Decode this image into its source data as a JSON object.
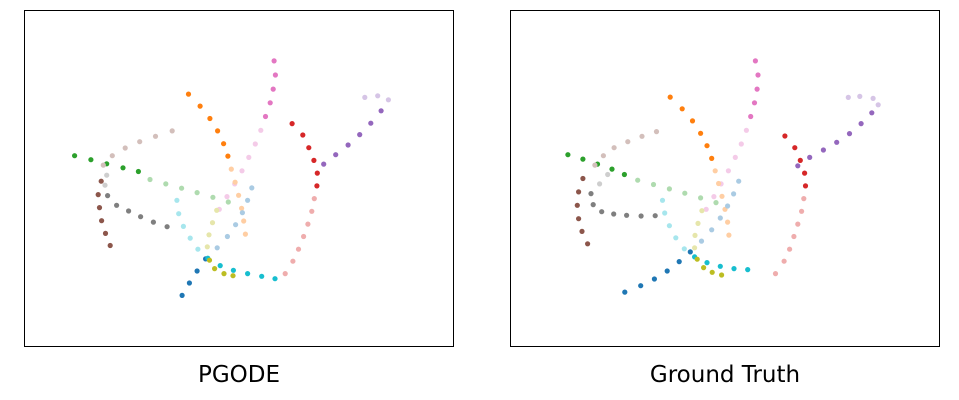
{
  "chart_data": [
    {
      "type": "scatter",
      "title": "PGODE",
      "xlim": [
        0,
        100
      ],
      "ylim": [
        0,
        100
      ],
      "grid": false,
      "series": [
        {
          "color": "#e377c2",
          "light": false,
          "points": [
            [
              58.2,
              85.1
            ],
            [
              58.5,
              80.9
            ],
            [
              58.0,
              76.7
            ],
            [
              57.3,
              72.6
            ],
            [
              56.2,
              68.5
            ]
          ]
        },
        {
          "color": "#e377c2",
          "light": true,
          "points": [
            [
              55.1,
              64.4
            ],
            [
              53.8,
              60.3
            ],
            [
              52.3,
              56.3
            ],
            [
              50.7,
              52.3
            ],
            [
              49.0,
              48.4
            ],
            [
              47.2,
              44.6
            ],
            [
              45.4,
              40.8
            ]
          ]
        },
        {
          "color": "#ff7f0e",
          "light": false,
          "points": [
            [
              38.2,
              75.2
            ],
            [
              40.9,
              71.6
            ],
            [
              43.2,
              67.9
            ],
            [
              45.0,
              64.2
            ],
            [
              46.4,
              60.4
            ],
            [
              47.4,
              56.7
            ]
          ]
        },
        {
          "color": "#ff7f0e",
          "light": true,
          "points": [
            [
              48.2,
              52.8
            ],
            [
              49.1,
              48.9
            ],
            [
              49.9,
              45.0
            ],
            [
              50.6,
              41.1
            ],
            [
              51.1,
              37.3
            ],
            [
              51.5,
              33.4
            ]
          ]
        },
        {
          "color": "#d62728",
          "light": false,
          "points": [
            [
              62.4,
              66.4
            ],
            [
              64.9,
              63.0
            ],
            [
              66.3,
              59.2
            ],
            [
              67.5,
              55.4
            ],
            [
              68.3,
              51.6
            ],
            [
              68.2,
              47.8
            ]
          ]
        },
        {
          "color": "#d62728",
          "light": true,
          "points": [
            [
              67.6,
              44.0
            ],
            [
              67.0,
              40.2
            ],
            [
              66.1,
              36.4
            ],
            [
              65.1,
              32.7
            ],
            [
              63.9,
              28.9
            ],
            [
              62.6,
              25.3
            ],
            [
              60.8,
              21.6
            ]
          ]
        },
        {
          "color": "#9467bd",
          "light": true,
          "points": [
            [
              79.4,
              74.2
            ],
            [
              82.4,
              74.7
            ],
            [
              84.9,
              73.5
            ]
          ]
        },
        {
          "color": "#9467bd",
          "light": false,
          "points": [
            [
              83.2,
              70.2
            ],
            [
              80.8,
              66.5
            ],
            [
              78.2,
              63.1
            ],
            [
              75.5,
              60.0
            ],
            [
              72.6,
              57.1
            ],
            [
              69.8,
              54.3
            ]
          ]
        },
        {
          "color": "#2ca02c",
          "light": false,
          "points": [
            [
              11.6,
              56.8
            ],
            [
              15.4,
              55.6
            ],
            [
              19.1,
              54.4
            ],
            [
              22.9,
              53.2
            ],
            [
              26.5,
              52.1
            ]
          ]
        },
        {
          "color": "#2ca02c",
          "light": true,
          "points": [
            [
              29.2,
              49.7
            ],
            [
              32.9,
              48.4
            ],
            [
              36.6,
              47.1
            ],
            [
              40.2,
              45.8
            ],
            [
              43.9,
              44.4
            ],
            [
              47.5,
              43.0
            ]
          ]
        },
        {
          "color": "#8c564b",
          "light": true,
          "points": [
            [
              34.4,
              64.2
            ],
            [
              30.5,
              62.6
            ],
            [
              26.8,
              61.0
            ],
            [
              23.4,
              59.1
            ],
            [
              20.4,
              56.8
            ],
            [
              18.3,
              54.0
            ]
          ]
        },
        {
          "color": "#8c564b",
          "light": false,
          "points": [
            [
              17.8,
              49.2
            ],
            [
              17.1,
              45.2
            ],
            [
              17.4,
              41.3
            ],
            [
              17.9,
              37.4
            ],
            [
              18.8,
              33.6
            ],
            [
              19.9,
              30.0
            ]
          ]
        },
        {
          "color": "#7f7f7f",
          "light": true,
          "points": [
            [
              19.1,
              51.0
            ],
            [
              18.7,
              48.0
            ]
          ]
        },
        {
          "color": "#7f7f7f",
          "light": false,
          "points": [
            [
              19.3,
              44.9
            ],
            [
              21.4,
              42.0
            ],
            [
              24.2,
              40.3
            ],
            [
              27.0,
              38.6
            ],
            [
              30.0,
              37.0
            ],
            [
              33.2,
              35.6
            ]
          ]
        },
        {
          "color": "#1f77b4",
          "light": true,
          "points": [
            [
              53.0,
              47.2
            ],
            [
              52.0,
              43.5
            ],
            [
              50.8,
              39.8
            ],
            [
              49.2,
              36.2
            ],
            [
              47.3,
              32.7
            ],
            [
              44.9,
              29.3
            ]
          ]
        },
        {
          "color": "#1f77b4",
          "light": false,
          "points": [
            [
              42.2,
              26.0
            ],
            [
              40.2,
              22.4
            ],
            [
              38.4,
              18.8
            ],
            [
              36.7,
              15.1
            ]
          ]
        },
        {
          "color": "#17becf",
          "light": true,
          "points": [
            [
              35.5,
              43.5
            ],
            [
              35.9,
              39.5
            ],
            [
              37.0,
              35.7
            ],
            [
              38.6,
              32.2
            ],
            [
              40.4,
              28.9
            ]
          ]
        },
        {
          "color": "#17becf",
          "light": false,
          "points": [
            [
              42.7,
              26.2
            ],
            [
              45.6,
              24.0
            ],
            [
              48.7,
              22.6
            ],
            [
              52.0,
              21.6
            ],
            [
              55.3,
              20.8
            ],
            [
              58.4,
              20.1
            ]
          ]
        },
        {
          "color": "#bcbd22",
          "light": true,
          "points": [
            [
              44.8,
              40.5
            ],
            [
              43.8,
              36.8
            ],
            [
              43.0,
              33.2
            ],
            [
              42.6,
              29.6
            ]
          ]
        },
        {
          "color": "#bcbd22",
          "light": false,
          "points": [
            [
              43.1,
              25.6
            ],
            [
              44.3,
              23.1
            ],
            [
              46.5,
              21.6
            ],
            [
              48.6,
              21.0
            ]
          ]
        }
      ]
    },
    {
      "type": "scatter",
      "title": "Ground Truth",
      "xlim": [
        0,
        100
      ],
      "ylim": [
        0,
        100
      ],
      "grid": false,
      "series": [
        {
          "color": "#e377c2",
          "light": false,
          "points": [
            [
              57.1,
              85.1
            ],
            [
              57.7,
              80.9
            ],
            [
              57.5,
              76.7
            ],
            [
              56.9,
              72.6
            ],
            [
              56.0,
              68.5
            ]
          ]
        },
        {
          "color": "#e377c2",
          "light": true,
          "points": [
            [
              55.0,
              64.4
            ],
            [
              53.8,
              60.3
            ],
            [
              52.4,
              56.3
            ],
            [
              50.8,
              52.3
            ],
            [
              49.1,
              48.4
            ],
            [
              47.4,
              44.6
            ],
            [
              45.6,
              40.8
            ]
          ]
        },
        {
          "color": "#ff7f0e",
          "light": false,
          "points": [
            [
              37.2,
              74.3
            ],
            [
              40.0,
              70.8
            ],
            [
              42.4,
              67.2
            ],
            [
              44.3,
              63.5
            ],
            [
              45.8,
              59.8
            ],
            [
              46.9,
              56.0
            ]
          ]
        },
        {
          "color": "#ff7f0e",
          "light": true,
          "points": [
            [
              47.7,
              52.3
            ],
            [
              48.5,
              48.5
            ],
            [
              49.3,
              44.7
            ],
            [
              50.0,
              40.8
            ],
            [
              50.6,
              37.0
            ],
            [
              50.9,
              33.1
            ]
          ]
        },
        {
          "color": "#d62728",
          "light": false,
          "points": [
            [
              64.0,
              62.7
            ],
            [
              66.3,
              59.2
            ],
            [
              67.6,
              55.4
            ],
            [
              68.6,
              51.6
            ],
            [
              68.8,
              47.8
            ]
          ]
        },
        {
          "color": "#d62728",
          "light": true,
          "points": [
            [
              68.4,
              44.0
            ],
            [
              67.9,
              40.2
            ],
            [
              67.0,
              36.4
            ],
            [
              66.1,
              32.7
            ],
            [
              65.1,
              28.9
            ],
            [
              63.8,
              25.3
            ],
            [
              61.8,
              21.6
            ]
          ]
        },
        {
          "color": "#9467bd",
          "light": true,
          "points": [
            [
              78.8,
              74.2
            ],
            [
              81.5,
              74.5
            ],
            [
              84.6,
              73.9
            ],
            [
              85.8,
              72.0
            ]
          ]
        },
        {
          "color": "#9467bd",
          "light": false,
          "points": [
            [
              84.3,
              69.6
            ],
            [
              81.8,
              66.4
            ],
            [
              79.1,
              63.4
            ],
            [
              76.1,
              60.8
            ],
            [
              73.0,
              58.5
            ],
            [
              69.8,
              56.3
            ],
            [
              67.0,
              53.8
            ]
          ]
        },
        {
          "color": "#2ca02c",
          "light": false,
          "points": [
            [
              13.3,
              57.1
            ],
            [
              16.8,
              55.8
            ],
            [
              20.2,
              54.3
            ],
            [
              23.6,
              52.8
            ],
            [
              26.5,
              51.2
            ]
          ]
        },
        {
          "color": "#2ca02c",
          "light": true,
          "points": [
            [
              29.6,
              49.5
            ],
            [
              33.3,
              48.2
            ],
            [
              37.0,
              46.9
            ],
            [
              40.6,
              45.6
            ],
            [
              44.3,
              44.2
            ],
            [
              47.9,
              42.8
            ]
          ]
        },
        {
          "color": "#8c564b",
          "light": true,
          "points": [
            [
              34.0,
              64.0
            ],
            [
              30.6,
              62.6
            ],
            [
              27.3,
              61.0
            ],
            [
              24.1,
              59.2
            ],
            [
              21.6,
              56.8
            ],
            [
              19.6,
              54.0
            ]
          ]
        },
        {
          "color": "#8c564b",
          "light": false,
          "points": [
            [
              16.8,
              50.0
            ],
            [
              15.8,
              46.0
            ],
            [
              15.5,
              42.0
            ],
            [
              15.8,
              38.0
            ],
            [
              16.6,
              34.2
            ],
            [
              17.9,
              30.5
            ]
          ]
        },
        {
          "color": "#7f7f7f",
          "light": true,
          "points": [
            [
              22.6,
              51.2
            ],
            [
              20.7,
              48.4
            ]
          ]
        },
        {
          "color": "#7f7f7f",
          "light": false,
          "points": [
            [
              18.7,
              45.5
            ],
            [
              19.2,
              42.2
            ],
            [
              21.2,
              40.1
            ],
            [
              24.0,
              39.4
            ],
            [
              27.0,
              39.0
            ],
            [
              30.4,
              38.8
            ],
            [
              33.7,
              38.9
            ]
          ]
        },
        {
          "color": "#1f77b4",
          "light": true,
          "points": [
            [
              53.2,
              49.2
            ],
            [
              52.0,
              45.4
            ],
            [
              50.6,
              41.8
            ],
            [
              48.9,
              38.2
            ],
            [
              46.9,
              34.7
            ],
            [
              44.5,
              31.3
            ]
          ]
        },
        {
          "color": "#1f77b4",
          "light": false,
          "points": [
            [
              41.9,
              28.1
            ],
            [
              39.3,
              25.2
            ],
            [
              36.5,
              22.4
            ],
            [
              33.5,
              20.0
            ],
            [
              30.3,
              18.0
            ],
            [
              26.6,
              16.1
            ]
          ]
        },
        {
          "color": "#17becf",
          "light": true,
          "points": [
            [
              35.4,
              43.5
            ],
            [
              35.9,
              39.7
            ],
            [
              37.0,
              35.9
            ],
            [
              38.5,
              32.3
            ],
            [
              40.5,
              29.0
            ]
          ]
        },
        {
          "color": "#17becf",
          "light": false,
          "points": [
            [
              42.9,
              26.6
            ],
            [
              45.8,
              24.9
            ],
            [
              48.9,
              23.8
            ],
            [
              52.1,
              23.1
            ],
            [
              55.3,
              22.8
            ]
          ]
        },
        {
          "color": "#bcbd22",
          "light": true,
          "points": [
            [
              44.6,
              40.4
            ],
            [
              43.7,
              36.6
            ],
            [
              43.0,
              33.0
            ],
            [
              42.9,
              29.3
            ]
          ]
        },
        {
          "color": "#bcbd22",
          "light": false,
          "points": [
            [
              43.5,
              25.9
            ],
            [
              45.0,
              23.4
            ],
            [
              47.0,
              22.0
            ],
            [
              49.2,
              21.2
            ]
          ]
        }
      ]
    }
  ]
}
